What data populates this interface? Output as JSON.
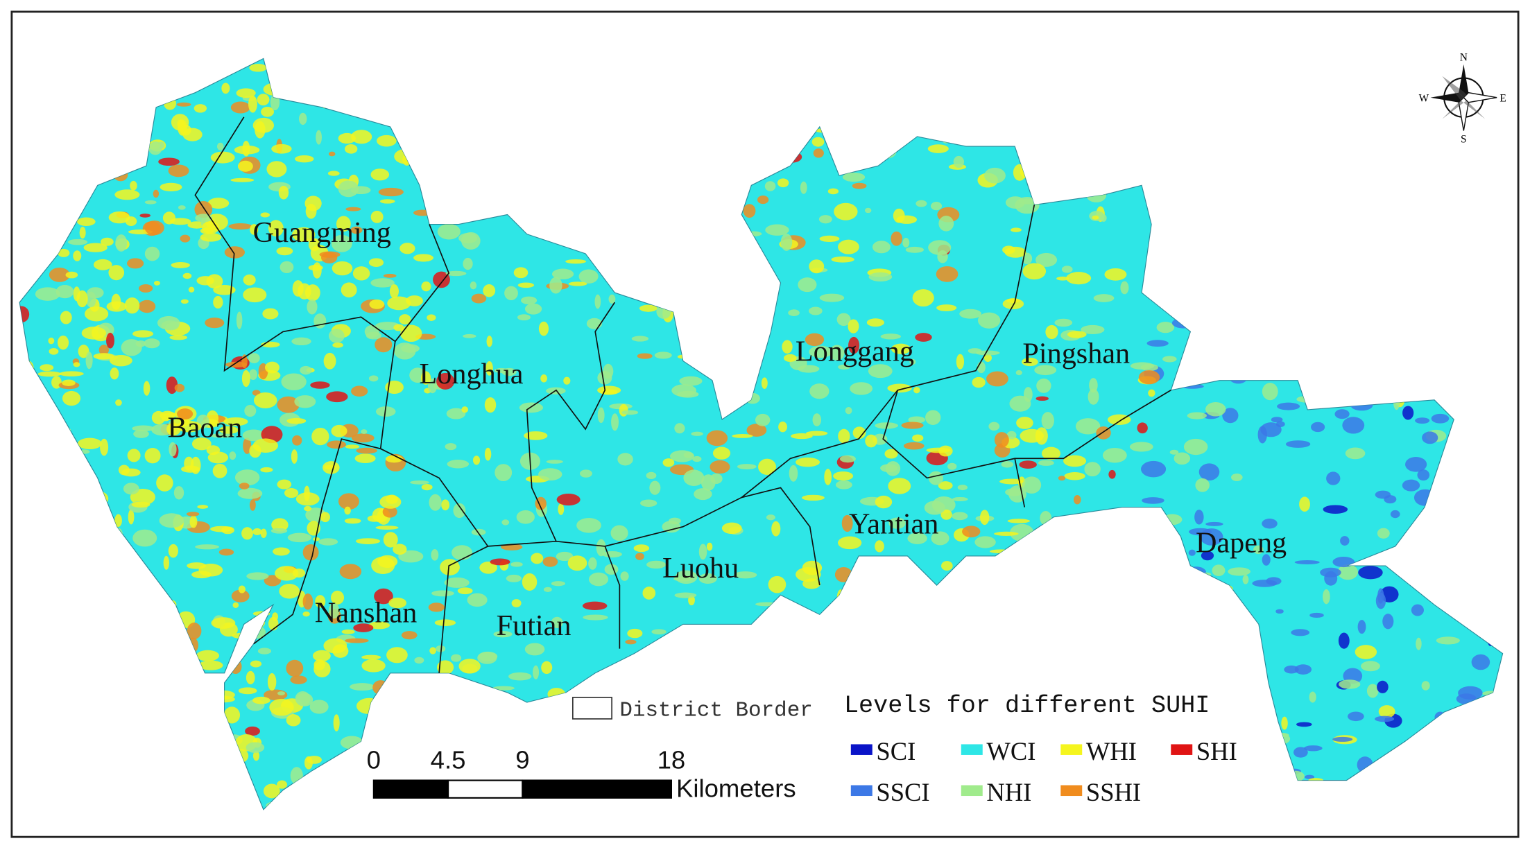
{
  "map": {
    "districts": [
      "Guangming",
      "Longhua",
      "Baoan",
      "Nanshan",
      "Futian",
      "Luohu",
      "Longgang",
      "Pingshan",
      "Yantian",
      "Dapeng"
    ],
    "district_border_label": "District Border",
    "legend": {
      "title": "Levels for different SUHI",
      "items": [
        {
          "label": "SCI",
          "color": "#0a14c8"
        },
        {
          "label": "WCI",
          "color": "#2ee6e6"
        },
        {
          "label": "WHI",
          "color": "#f5f51e"
        },
        {
          "label": "SHI",
          "color": "#e01414"
        },
        {
          "label": "SSCI",
          "color": "#3c78e6"
        },
        {
          "label": "NHI",
          "color": "#a0eb8c"
        },
        {
          "label": "SSHI",
          "color": "#f08c1e"
        }
      ]
    },
    "scale_bar": {
      "ticks": [
        0,
        4.5,
        9,
        18
      ],
      "unit": "Kilometers"
    },
    "compass": {
      "n": "N",
      "s": "S",
      "e": "E",
      "w": "W"
    }
  }
}
